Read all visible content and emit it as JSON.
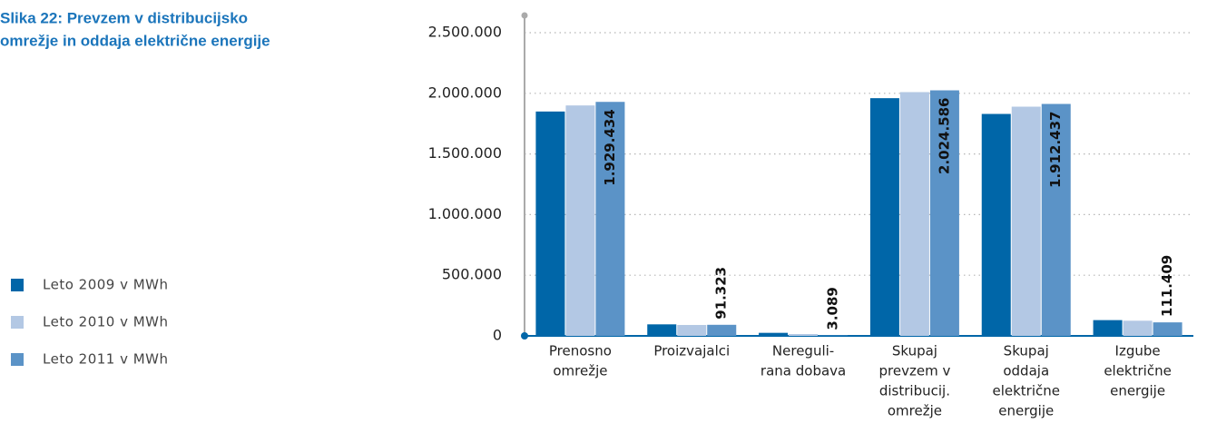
{
  "chart_data": {
    "type": "bar",
    "title": [
      "Slika 22: Prevzem v distribucijsko",
      "omrežje in oddaja električne energije"
    ],
    "categories": [
      [
        "Prenosno",
        "omrežje"
      ],
      [
        "Proizvajalci"
      ],
      [
        "Nereguli-",
        "rana dobava"
      ],
      [
        "Skupaj",
        "prevzem v",
        "distribucij.",
        "omrežje"
      ],
      [
        "Skupaj",
        "oddaja",
        "električne",
        "energije"
      ],
      [
        "Izgube",
        "električne",
        "energije"
      ]
    ],
    "series": [
      {
        "name": "Leto 2009 v MWh",
        "color": "#0066a8",
        "values": [
          1850000,
          95000,
          25000,
          1960000,
          1830000,
          130000
        ]
      },
      {
        "name": "Leto 2010 v MWh",
        "color": "#b3c8e4",
        "values": [
          1900000,
          90000,
          15000,
          2010000,
          1890000,
          125000
        ]
      },
      {
        "name": "Leto 2011 v MWh",
        "color": "#5b93c7",
        "values": [
          1929434,
          91323,
          3089,
          2024586,
          1912437,
          111409
        ],
        "value_labels": [
          "1.929.434",
          "91.323",
          "3.089",
          "2.024.586",
          "1.912.437",
          "111.409"
        ]
      }
    ],
    "ylim": [
      0,
      2500000
    ],
    "yticks": [
      0,
      {
        "value": 500000,
        "label": "500.000"
      },
      {
        "value": 1000000,
        "label": "1.000.000"
      },
      {
        "value": 1500000,
        "label": "1.500.000"
      },
      {
        "value": 2000000,
        "label": "2.000.000"
      },
      {
        "value": 2500000,
        "label": "2.500.000"
      }
    ],
    "grid": true
  }
}
